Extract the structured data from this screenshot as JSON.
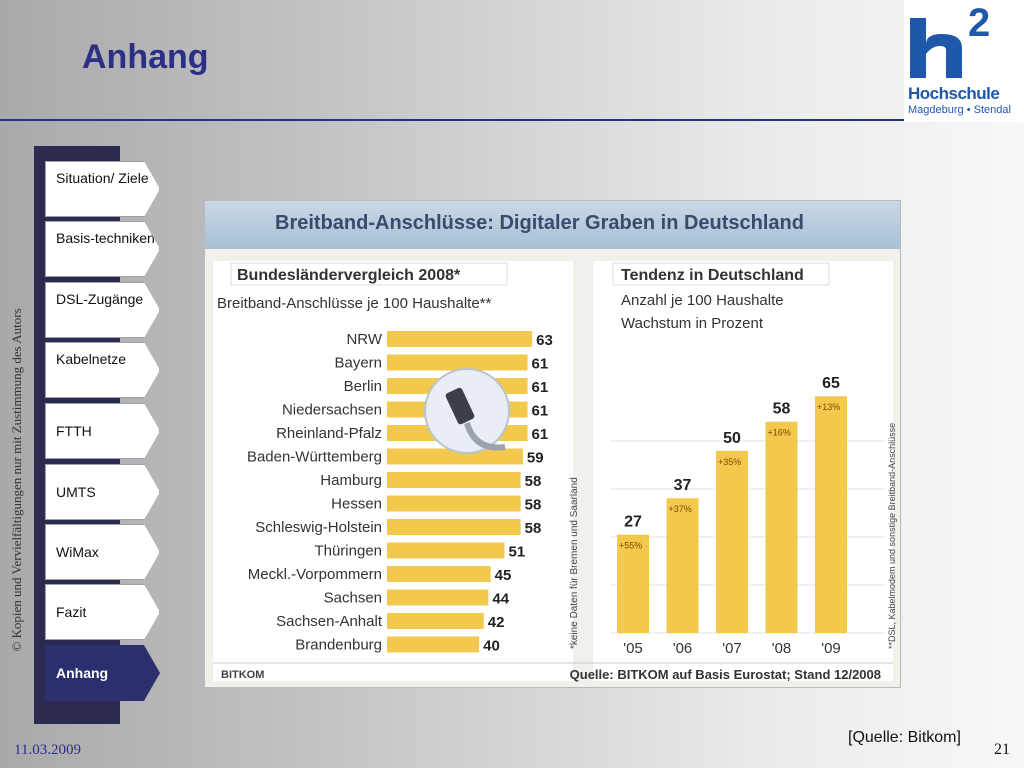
{
  "slide": {
    "title": "Anhang",
    "vertical_note": "© Kopien und Vervielfältigungen nur mit Zustimmung des Autors",
    "source": "[Quelle: Bitkom]",
    "page_number": "21",
    "date": "11.03.2009"
  },
  "logo": {
    "big": "h",
    "superscript": "2",
    "name": "Hochschule",
    "sub": "Magdeburg • Stendal"
  },
  "nav": {
    "items": [
      {
        "label": "Situation/ Ziele",
        "active": false
      },
      {
        "label": "Basis-techniken",
        "active": false
      },
      {
        "label": "DSL-Zugänge",
        "active": false
      },
      {
        "label": "Kabelnetze",
        "active": false
      },
      {
        "label": "FTTH",
        "active": false
      },
      {
        "label": "UMTS",
        "active": false
      },
      {
        "label": "WiMax",
        "active": false
      },
      {
        "label": "Fazit",
        "active": false
      },
      {
        "label": "Anhang",
        "active": true
      }
    ]
  },
  "chart_data": [
    {
      "type": "bar",
      "orientation": "horizontal",
      "title": "Breitband-Anschlüsse: Digitaler Graben in Deutschland",
      "subtitle": "Bundesländervergleich 2008*",
      "description": "Breitband-Anschlüsse je 100 Haushalte**",
      "categories": [
        "NRW",
        "Bayern",
        "Berlin",
        "Niedersachsen",
        "Rheinland-Pfalz",
        "Baden-Württemberg",
        "Hamburg",
        "Hessen",
        "Schleswig-Holstein",
        "Thüringen",
        "Meckl.-Vorpommern",
        "Sachsen",
        "Sachsen-Anhalt",
        "Brandenburg"
      ],
      "values": [
        63,
        61,
        61,
        61,
        61,
        59,
        58,
        58,
        58,
        51,
        45,
        44,
        42,
        40
      ],
      "footnote_vertical": "*keine Daten für Bremen und Saarland",
      "color": "#f2c94c"
    },
    {
      "type": "bar",
      "orientation": "vertical",
      "subtitle": "Tendenz in Deutschland",
      "description_lines": [
        "Anzahl je 100 Haushalte",
        "Wachstum in Prozent"
      ],
      "categories": [
        "'05",
        "'06",
        "'07",
        "'08",
        "'09"
      ],
      "values": [
        27,
        37,
        50,
        58,
        65
      ],
      "growth_labels": [
        "+55%",
        "+37%",
        "+35%",
        "+16%",
        "+13%"
      ],
      "footnote_vertical": "**DSL, Kabelmodem und sonstige Breitband-Anschlüsse",
      "color": "#f2c94c"
    }
  ],
  "chart_footer": {
    "brand": "BITKOM",
    "source_line": "Quelle: BITKOM auf Basis Eurostat; Stand 12/2008"
  }
}
